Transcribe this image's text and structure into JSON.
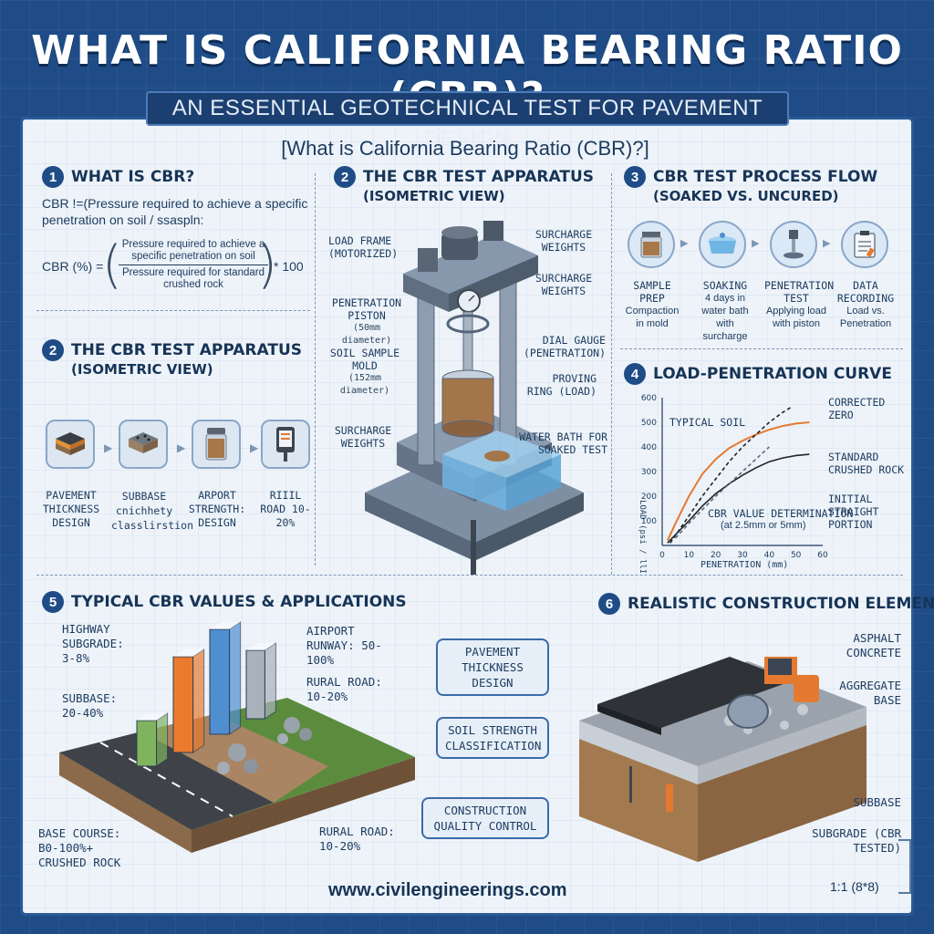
{
  "header": {
    "title": "WHAT IS CALIFORNIA BEARING RATIO (CBR)?",
    "subtitle": "AN ESSENTIAL GEOTECHNICAL TEST FOR PAVEMENT DESIGN"
  },
  "bracket_title": "[What is California Bearing Ratio (CBR)?]",
  "section1": {
    "number": "1",
    "title": "WHAT IS CBR?",
    "definition": "CBR !=(Pressure required to achieve a specific penetration on soil / ssaspln:",
    "formula_lhs": "CBR (%) =",
    "numerator": "Pressure required to achieve a specific penetration on soil",
    "denominator": "Pressure required for standard crushed rock",
    "multiplier": "* 100"
  },
  "section2_left": {
    "number": "2",
    "title": "THE CBR TEST APPARATUS",
    "subtitle": "(ISOMETRIC VIEW)",
    "items": [
      {
        "label": "PAVEMENT THICKNESS DESIGN",
        "icon": "pavement-layers-icon"
      },
      {
        "label": "SUBBASE cnichhety classlirstion",
        "icon": "soil-sample-icon"
      },
      {
        "label": "ARPORT STRENGTH: DESIGN",
        "icon": "sample-jar-icon"
      },
      {
        "label": "RIIIL ROAD 10-20%",
        "icon": "gauge-device-icon"
      }
    ]
  },
  "section2_center": {
    "number": "2",
    "title": "THE CBR TEST APPARATUS",
    "subtitle": "(ISOMETRIC VIEW)",
    "labels": {
      "load_frame": "LOAD FRAME",
      "load_frame_sub": "(MOTORIZED)",
      "piston": "PENETRATION PISTON",
      "piston_sub": "(50mm diameter)",
      "mold": "SOIL SAMPLE MOLD",
      "mold_sub": "(152mm diameter)",
      "surcharge_left": "SURCHARGE WEIGHTS",
      "surcharge_top": "SURCHARGE WEIGHTS",
      "surcharge_mid": "SURCHARGE WEIGHTS",
      "dial": "DIAL GAUGE (PENETRATION)",
      "ring": "PROVING RING (LOAD)",
      "bath": "WATER BATH FOR SOAKED TEST"
    }
  },
  "section3": {
    "number": "3",
    "title": "CBR TEST PROCESS FLOW",
    "subtitle": "(SOAKED VS. UNCURED)",
    "steps": [
      {
        "title": "SAMPLE PREP",
        "desc": "Compaction in mold",
        "icon": "sample-prep-icon"
      },
      {
        "title": "SOAKING",
        "desc": "4 days in water bath with surcharge",
        "icon": "soaking-icon"
      },
      {
        "title": "PENETRATION TEST",
        "desc": "Applying load with piston",
        "icon": "piston-icon"
      },
      {
        "title": "DATA RECORDING",
        "desc": "Load vs. Penetration",
        "icon": "clipboard-icon"
      }
    ]
  },
  "section4": {
    "number": "4",
    "title": "LOAD-PENETRATION CURVE"
  },
  "chart_data": {
    "type": "line",
    "xlabel": "PENETRATION (mm)",
    "ylabel": "LOAD (psi / llIPa)",
    "xlim": [
      0,
      60
    ],
    "ylim": [
      0,
      600
    ],
    "xticks": [
      0,
      10,
      20,
      30,
      40,
      50,
      60
    ],
    "yticks": [
      100,
      200,
      300,
      400,
      500,
      600
    ],
    "series": [
      {
        "name": "TYPICAL SOIL",
        "color": "#e5792f",
        "x": [
          2,
          5,
          10,
          15,
          20,
          25,
          30,
          35,
          40,
          45,
          50,
          55
        ],
        "y": [
          20,
          90,
          200,
          290,
          350,
          395,
          425,
          450,
          470,
          485,
          495,
          500
        ]
      },
      {
        "name": "CORRECTED ZERO",
        "color": "#222222",
        "x": [
          3,
          10,
          15,
          20,
          25,
          30,
          35,
          40,
          45,
          48
        ],
        "y": [
          10,
          120,
          200,
          270,
          340,
          400,
          450,
          500,
          540,
          560
        ]
      },
      {
        "name": "STANDARD CRUSHED ROCK",
        "color": "#222222",
        "x": [
          2,
          10,
          15,
          20,
          25,
          30,
          35,
          40,
          45,
          50,
          55
        ],
        "y": [
          10,
          100,
          160,
          210,
          250,
          285,
          315,
          340,
          355,
          365,
          370
        ]
      },
      {
        "name": "INITIAL STRAIGHT PORTION",
        "color": "#5a6c80",
        "x": [
          5,
          10,
          20,
          30,
          40
        ],
        "y": [
          30,
          90,
          200,
          300,
          400
        ]
      }
    ],
    "annotations": [
      "TYPICAL SOIL",
      "CORRECTED ZERO",
      "STANDARD CRUSHED ROCK",
      "INITIAL STRAIGHT PORTION",
      "CBR VALUE DETERMINATION",
      "(at 2.5mm or 5mm)"
    ],
    "grid": false
  },
  "section5": {
    "number": "5",
    "title": "TYPICAL CBR VALUES & APPLICATIONS",
    "labels": {
      "highway": "HIGHWAY SUBGRADE: 3-8%",
      "subbase": "SUBBASE: 20-40%",
      "airport": "AIRPORT RUNWAY: 50-100%",
      "rural_top": "RURAL ROAD: 10-20%",
      "rural_bottom": "RURAL ROAD: 10-20%",
      "base": "BASE COURSE: B0-100%+ CRUSHED ROCK"
    },
    "bars": [
      {
        "color": "#7fb35e"
      },
      {
        "color": "#ea7b2e"
      },
      {
        "color": "#4f8fd0"
      },
      {
        "color": "#a9b1bb"
      }
    ],
    "pills": [
      "PAVEMENT THICKNESS DESIGN",
      "SOIL STRENGTH CLASSIFICATION",
      "CONSTRUCTION QUALITY CONTROL"
    ]
  },
  "section6": {
    "number": "6",
    "title": "REALISTIC CONSTRUCTION ELEMENTS",
    "labels": {
      "asphalt": "ASPHALT CONCRETE",
      "aggregate": "AGGREGATE BASE",
      "subbase": "SUBBASE",
      "subgrade": "SUBGRADE (CBR TESTED)"
    }
  },
  "footer": {
    "url": "www.civilengineerings.com",
    "scale": "1:1 (8*8)"
  },
  "colors": {
    "background": "#1f4c86",
    "panel": "#edf3f9",
    "accent_orange": "#e5792f",
    "accent_blue": "#4f8fd0"
  }
}
